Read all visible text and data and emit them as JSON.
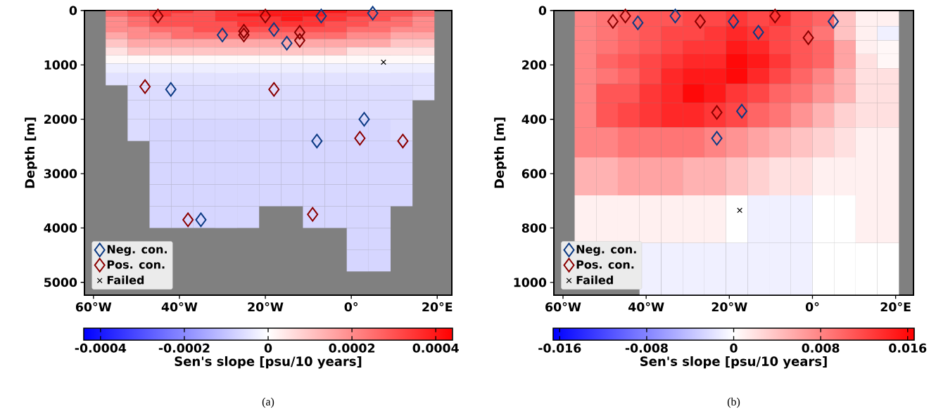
{
  "chart_data": [
    {
      "type": "heatmap",
      "ylabel": "Depth [m]",
      "clabel": "Sen's slope [psu/10 years]",
      "x": [
        -54.6,
        -49.5,
        -44.4,
        -39.3,
        -34.2,
        -29.1,
        -24,
        -18.9,
        -13.8,
        -8.7,
        -3.6,
        1.5,
        6.6,
        11.7,
        16.8
      ],
      "y": [
        25,
        75,
        150,
        250,
        350,
        450,
        600,
        750,
        900,
        1050,
        1250,
        1500,
        1800,
        2200,
        2600,
        3000,
        3400,
        3800,
        4200,
        4600
      ],
      "cells": [
        [
          0.00025,
          0.0003,
          0.00035,
          0.00035,
          0.0003,
          0.00035,
          0.00035,
          0.0004,
          0.0004,
          0.0004,
          0.0004,
          0.00035,
          0.0003,
          0.0003,
          0.00025
        ],
        [
          0.00025,
          0.0003,
          0.00035,
          0.0003,
          0.0003,
          0.00035,
          0.0004,
          0.0004,
          0.0004,
          0.0004,
          0.00035,
          0.00035,
          0.0003,
          0.0003,
          0.00025
        ],
        [
          0.0002,
          0.00025,
          0.0003,
          0.0003,
          0.0003,
          0.00035,
          0.00035,
          0.00035,
          0.0004,
          0.00035,
          0.00035,
          0.0003,
          0.0003,
          0.00025,
          0.0002
        ],
        [
          0.0002,
          0.00025,
          0.0003,
          0.0003,
          0.0003,
          0.0003,
          0.00035,
          0.00035,
          0.00035,
          0.00035,
          0.0003,
          0.0003,
          0.00025,
          0.00025,
          0.0002
        ],
        [
          0.0002,
          0.0002,
          0.00025,
          0.00025,
          0.0003,
          0.0003,
          0.0003,
          0.0003,
          0.0003,
          0.0003,
          0.0003,
          0.00025,
          0.00025,
          0.0002,
          0.0002
        ],
        [
          0.00015,
          0.0002,
          0.0002,
          0.00025,
          0.00025,
          0.00025,
          0.00025,
          0.00025,
          0.00025,
          0.00025,
          0.00025,
          0.0002,
          0.0002,
          0.00015,
          0.00015
        ],
        [
          0.0001,
          0.00015,
          0.00015,
          0.00015,
          0.00015,
          0.00015,
          0.00015,
          0.00015,
          0.00015,
          0.00015,
          0.00015,
          0.00015,
          0.00015,
          0.0001,
          0.0001
        ],
        [
          5e-05,
          0.0001,
          0.0001,
          0.0001,
          0.0001,
          0.0001,
          0.0001,
          0.0001,
          0.0001,
          0.0001,
          0.0001,
          5e-05,
          5e-05,
          5e-05,
          5e-05
        ],
        [
          1e-05,
          1e-05,
          1e-05,
          1e-05,
          1e-05,
          1e-05,
          1e-05,
          1e-05,
          1e-05,
          1e-05,
          1e-05,
          1e-05,
          1e-05,
          1e-05,
          1e-05
        ],
        [
          -3e-05,
          -3e-05,
          -3e-05,
          -3e-05,
          -3e-05,
          -3e-05,
          -3e-05,
          -3e-05,
          -3e-05,
          -3e-05,
          -3e-05,
          -3e-05,
          -3e-05,
          -3e-05,
          -3e-05
        ],
        [
          -5e-05,
          -5e-05,
          -5e-05,
          -5e-05,
          -5e-05,
          -5e-05,
          -5e-05,
          -5e-05,
          -5e-05,
          -5e-05,
          -5e-05,
          -5e-05,
          -5e-05,
          -5e-05,
          -5e-05
        ],
        [
          null,
          -6e-05,
          -6e-05,
          -6e-05,
          -6e-05,
          -6e-05,
          -6e-05,
          -6e-05,
          -6e-05,
          -6e-05,
          -6e-05,
          -6e-05,
          -6e-05,
          -6e-05,
          -5e-05
        ],
        [
          null,
          -6e-05,
          -6e-05,
          -6e-05,
          -6e-05,
          -6e-05,
          -6e-05,
          -6e-05,
          -6e-05,
          -6e-05,
          -6e-05,
          -6e-05,
          -6e-05,
          -6e-05,
          null
        ],
        [
          null,
          -6e-05,
          -7e-05,
          -7e-05,
          -7e-05,
          -7e-05,
          -7e-05,
          -7e-05,
          -7e-05,
          -7e-05,
          -7e-05,
          -7e-05,
          -7e-05,
          -6e-05,
          null
        ],
        [
          null,
          null,
          -7e-05,
          -7e-05,
          -7e-05,
          -7e-05,
          -7e-05,
          -7e-05,
          -7e-05,
          -7e-05,
          -7e-05,
          -7e-05,
          -7e-05,
          -7e-05,
          null
        ],
        [
          null,
          null,
          -7e-05,
          -7e-05,
          -7e-05,
          -7e-05,
          -7e-05,
          -7e-05,
          -7e-05,
          -7e-05,
          -7e-05,
          -7e-05,
          -7e-05,
          -7e-05,
          null
        ],
        [
          null,
          null,
          -7e-05,
          -7e-05,
          -7e-05,
          -7e-05,
          -7e-05,
          -7e-05,
          -7e-05,
          -7e-05,
          -7e-05,
          -7e-05,
          -7e-05,
          -7e-05,
          null
        ],
        [
          null,
          null,
          -7e-05,
          -7e-05,
          -7e-05,
          -7e-05,
          -7e-05,
          null,
          null,
          -7e-05,
          -7e-05,
          -7e-05,
          -7e-05,
          null,
          null
        ],
        [
          null,
          null,
          null,
          null,
          null,
          null,
          null,
          null,
          null,
          null,
          null,
          -7e-05,
          -7e-05,
          null,
          null
        ],
        [
          null,
          null,
          null,
          null,
          null,
          null,
          null,
          null,
          null,
          null,
          null,
          -7e-05,
          -7e-05,
          null,
          null
        ]
      ],
      "clim": [
        -0.00044,
        0.00044
      ],
      "cticks": [
        -0.0004,
        -0.0002,
        0,
        0.0002,
        0.0004
      ],
      "xlim": [
        -62.1,
        23.4
      ],
      "ylim": [
        5236,
        0
      ],
      "xticks": [
        {
          "value": -60,
          "label": "60°W"
        },
        {
          "value": -40,
          "label": "40°W"
        },
        {
          "value": -20,
          "label": "20°W"
        },
        {
          "value": 0,
          "label": "0°"
        },
        {
          "value": 20,
          "label": "20°E"
        }
      ],
      "yticks": [
        0,
        1000,
        2000,
        3000,
        4000,
        5000
      ],
      "legend": "bottom left",
      "series": [
        {
          "name": "Neg. con.",
          "type": "scatter",
          "marker": "diamond",
          "color": "#0d3b85",
          "x": [
            -42,
            3,
            -8,
            -35,
            -30,
            -15,
            -18,
            -7,
            5
          ],
          "values": [
            1450,
            2000,
            2400,
            3850,
            450,
            600,
            350,
            100,
            50
          ]
        },
        {
          "name": "Pos. con.",
          "type": "scatter",
          "marker": "diamond",
          "color": "#8b0000",
          "x": [
            -18,
            2,
            12,
            -48,
            -25,
            -12,
            -25,
            -12,
            -45,
            -20,
            -38,
            -9
          ],
          "values": [
            1450,
            2350,
            2400,
            1400,
            450,
            550,
            380,
            400,
            100,
            100,
            3850,
            3750
          ]
        },
        {
          "name": "Failed",
          "type": "scatter",
          "marker": "cross",
          "color": "#000000",
          "x": [
            7.5
          ],
          "values": [
            950
          ]
        }
      ],
      "annotations": [
        "(a)"
      ]
    },
    {
      "type": "heatmap",
      "ylabel": "Depth [m]",
      "clabel": "Sen's slope [psu/10 years]",
      "x": [
        -54.6,
        -49.4,
        -44.2,
        -39,
        -33.8,
        -28.6,
        -23.4,
        -18.2,
        -13,
        -7.8,
        -2.6,
        2.6,
        7.8,
        13,
        18.2
      ],
      "y": [
        30,
        85,
        135,
        185,
        240,
        300,
        380,
        480,
        600,
        760,
        950
      ],
      "cells": [
        [
          0.008,
          0.009,
          0.01,
          0.011,
          0.011,
          0.012,
          0.012,
          0.013,
          0.012,
          0.013,
          0.011,
          0.01,
          0.004,
          0.001,
          0.001
        ],
        [
          0.008,
          0.009,
          0.01,
          0.011,
          0.012,
          0.012,
          0.013,
          0.014,
          0.013,
          0.012,
          0.011,
          0.009,
          0.004,
          0.001,
          -0.001
        ],
        [
          0.008,
          0.009,
          0.01,
          0.011,
          0.012,
          0.013,
          0.013,
          0.015,
          0.014,
          0.012,
          0.011,
          0.01,
          0.006,
          0.001,
          0.0005
        ],
        [
          0.008,
          0.01,
          0.011,
          0.012,
          0.013,
          0.014,
          0.014,
          0.016,
          0.015,
          0.013,
          0.011,
          0.01,
          0.006,
          0.002,
          0.0005
        ],
        [
          0.008,
          0.009,
          0.01,
          0.012,
          0.014,
          0.015,
          0.015,
          0.016,
          0.014,
          0.012,
          0.01,
          0.008,
          0.005,
          0.002,
          0.002
        ],
        [
          0.008,
          0.011,
          0.011,
          0.013,
          0.014,
          0.016,
          0.015,
          0.013,
          0.012,
          0.01,
          0.009,
          0.007,
          0.005,
          0.002,
          0.002
        ],
        [
          0.008,
          0.011,
          0.012,
          0.013,
          0.014,
          0.014,
          0.013,
          0.012,
          0.01,
          0.009,
          0.007,
          0.005,
          0.003,
          0.002,
          0.002
        ],
        [
          0.008,
          0.008,
          0.009,
          0.009,
          0.009,
          0.009,
          0.008,
          0.007,
          0.006,
          0.005,
          0.004,
          0.003,
          0.002,
          0.001,
          0.001
        ],
        [
          0.005,
          0.005,
          0.006,
          0.006,
          0.006,
          0.005,
          0.005,
          0.004,
          0.003,
          0.002,
          0.002,
          0.001,
          0.001,
          0.001,
          0.001
        ],
        [
          0.001,
          0.001,
          0.001,
          0.001,
          0.001,
          0.001,
          0.001,
          0,
          -0.001,
          -0.001,
          -0.001,
          0,
          0,
          0.001,
          0.001
        ],
        [
          null,
          null,
          null,
          -0.001,
          -0.001,
          -0.001,
          -0.001,
          -0.001,
          -0.001,
          -0.001,
          -0.001,
          0,
          0,
          0,
          0
        ]
      ],
      "clim": [
        -0.0166,
        0.0166
      ],
      "cticks": [
        -0.016,
        -0.008,
        0,
        0.008,
        0.016
      ],
      "xlim": [
        -62.2,
        24.3
      ],
      "ylim": [
        1047,
        0
      ],
      "xticks": [
        {
          "value": -60,
          "label": "60°W"
        },
        {
          "value": -40,
          "label": "40°W"
        },
        {
          "value": -20,
          "label": "20°W"
        },
        {
          "value": 0,
          "label": "0°"
        },
        {
          "value": 20,
          "label": "20°E"
        }
      ],
      "yticks": [
        0,
        200,
        400,
        600,
        800,
        1000
      ],
      "legend": "bottom left",
      "series": [
        {
          "name": "Neg. con.",
          "type": "scatter",
          "marker": "diamond",
          "color": "#0d3b85",
          "x": [
            -23,
            -17,
            -33,
            -42,
            -19,
            -13,
            5
          ],
          "values": [
            470,
            370,
            20,
            45,
            40,
            80,
            40
          ]
        },
        {
          "name": "Pos. con.",
          "type": "scatter",
          "marker": "diamond",
          "color": "#8b0000",
          "x": [
            -23,
            -27,
            -45,
            -1,
            -9,
            -48
          ],
          "values": [
            375,
            40,
            20,
            100,
            20,
            40
          ]
        },
        {
          "name": "Failed",
          "type": "scatter",
          "marker": "cross",
          "color": "#000000",
          "x": [
            -17.5
          ],
          "values": [
            735
          ]
        }
      ],
      "annotations": [
        "(b)"
      ]
    }
  ]
}
